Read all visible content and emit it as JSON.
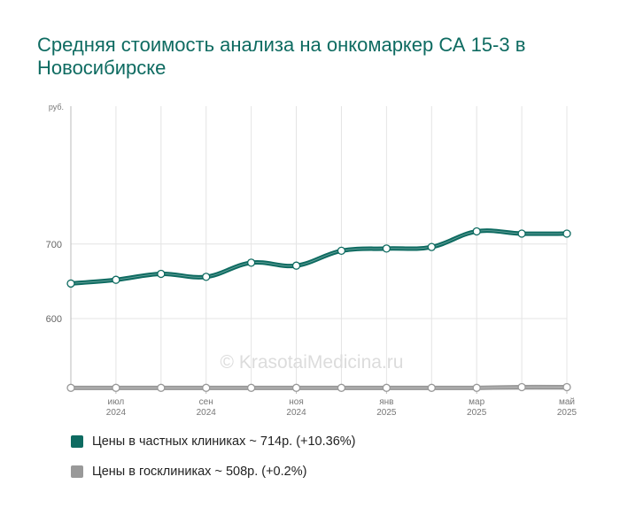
{
  "title": "Средняя стоимость анализа на онкомаркер СА 15-3 в Новосибирске",
  "chart_data": {
    "type": "line",
    "ylabel": "руб.",
    "ylim": [
      505,
      885
    ],
    "yticks": [
      600,
      700
    ],
    "x": [
      "2024-06",
      "2024-07",
      "2024-08",
      "2024-09",
      "2024-10",
      "2024-11",
      "2024-12",
      "2025-01",
      "2025-02",
      "2025-03",
      "2025-04",
      "2025-05"
    ],
    "xticks": [
      {
        "x": "2024-07",
        "month": "июл",
        "year": "2024"
      },
      {
        "x": "2024-09",
        "month": "сен",
        "year": "2024"
      },
      {
        "x": "2024-11",
        "month": "ноя",
        "year": "2024"
      },
      {
        "x": "2025-01",
        "month": "янв",
        "year": "2025"
      },
      {
        "x": "2025-03",
        "month": "мар",
        "year": "2025"
      },
      {
        "x": "2025-05",
        "month": "май",
        "year": "2025"
      }
    ],
    "grid": true,
    "series": [
      {
        "name": "Цены в частных клиниках ~ 714р. (+10.36%)",
        "color": "#0e6b61",
        "values": [
          647,
          652,
          660,
          656,
          675,
          671,
          691,
          694,
          696,
          717,
          714,
          714
        ]
      },
      {
        "name": "Цены в госклиниках ~ 508р. (+0.2%)",
        "color": "#999999",
        "values": [
          507,
          507,
          507,
          507,
          507,
          507,
          507,
          507,
          507,
          507,
          508,
          508
        ]
      }
    ],
    "watermark": "© KrasotaiMedicina.ru"
  }
}
